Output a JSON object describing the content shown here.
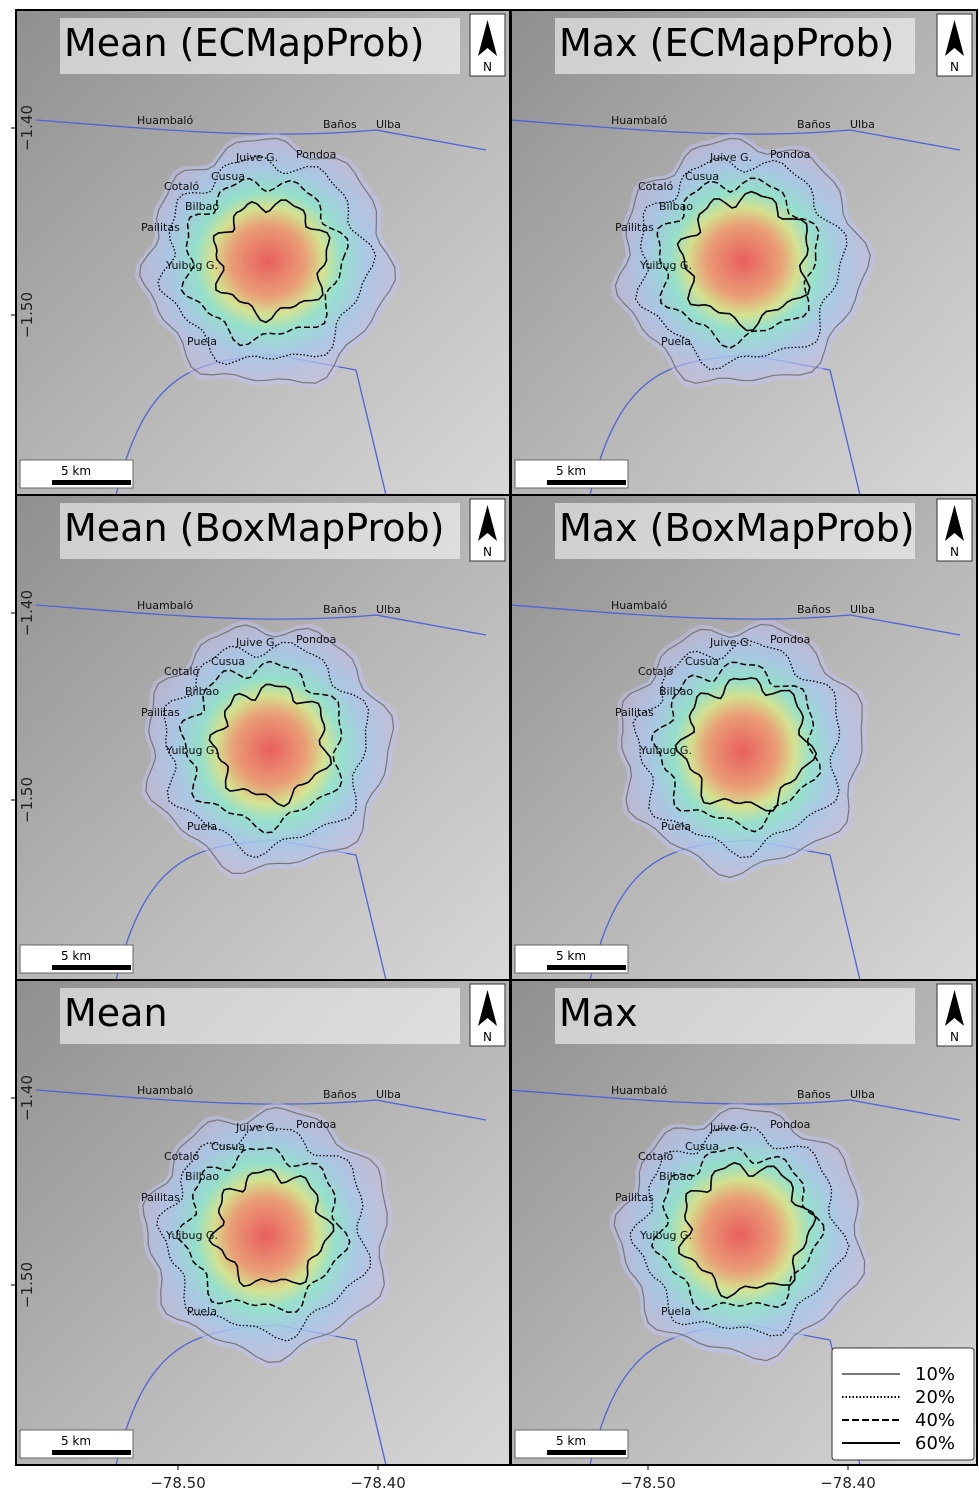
{
  "panels": [
    {
      "title": "Mean (ECMapProb)"
    },
    {
      "title": "Max (ECMapProb)"
    },
    {
      "title": "Mean (BoxMapProb)"
    },
    {
      "title": "Max (BoxMapProb)"
    },
    {
      "title": "Mean"
    },
    {
      "title": "Max"
    }
  ],
  "places": [
    {
      "name": "Huambaló"
    },
    {
      "name": "Baños"
    },
    {
      "name": "Ulba"
    },
    {
      "name": "Pondoa"
    },
    {
      "name": "Juive G."
    },
    {
      "name": "Cusua"
    },
    {
      "name": "Cotaló"
    },
    {
      "name": "Bilbao"
    },
    {
      "name": "Pailitas"
    },
    {
      "name": "Yuibug G."
    },
    {
      "name": "Puela"
    }
  ],
  "north_label": "N",
  "scale_label": "5 km",
  "y_ticks": [
    {
      "value": -1.4,
      "label": "−1.40"
    },
    {
      "value": -1.5,
      "label": "−1.50"
    }
  ],
  "x_ticks": [
    {
      "value": -78.5,
      "label": "−78.50"
    },
    {
      "value": -78.4,
      "label": "−78.40"
    }
  ],
  "legend": [
    {
      "label": "10%"
    },
    {
      "label": "20%"
    },
    {
      "label": "40%"
    },
    {
      "label": "60%"
    }
  ]
}
